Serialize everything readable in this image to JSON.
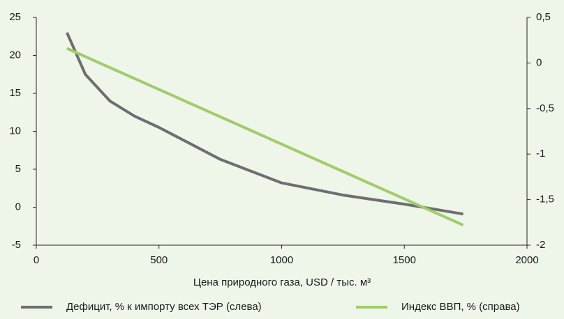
{
  "chart_data": {
    "type": "line",
    "xlabel": "Цена природного газа, USD / тыс. м³",
    "xlim": [
      0,
      2000
    ],
    "xticks": [
      0,
      500,
      1000,
      1500,
      2000
    ],
    "ylim": [
      -5,
      25
    ],
    "yticks": [
      -5,
      0,
      5,
      10,
      15,
      20,
      25
    ],
    "y2lim": [
      -2,
      0.5
    ],
    "y2ticks": [
      {
        "value": -2,
        "label": "-2"
      },
      {
        "value": -1.5,
        "label": "-1,5"
      },
      {
        "value": -1,
        "label": "-1"
      },
      {
        "value": -0.5,
        "label": "-0,5"
      },
      0,
      {
        "value": 0.5,
        "label": "0,5"
      }
    ],
    "grid": false,
    "legend": "bottom",
    "series": [
      {
        "name": "Дефицит, % к импорту всех ТЭР (слева)",
        "color": "#6d6e71",
        "x": [
          125,
          200,
          300,
          400,
          500,
          750,
          1000,
          1250,
          1500,
          1740
        ],
        "values": [
          23,
          17.5,
          14,
          12,
          10.5,
          6.3,
          3.2,
          1.6,
          0.4,
          -0.9
        ]
      },
      {
        "name": "Индекс ВВП, % (справа)",
        "color": "#9fcd69",
        "axis": "y2",
        "x": [
          125,
          1740
        ],
        "values": [
          0.16,
          -1.78
        ]
      }
    ]
  }
}
